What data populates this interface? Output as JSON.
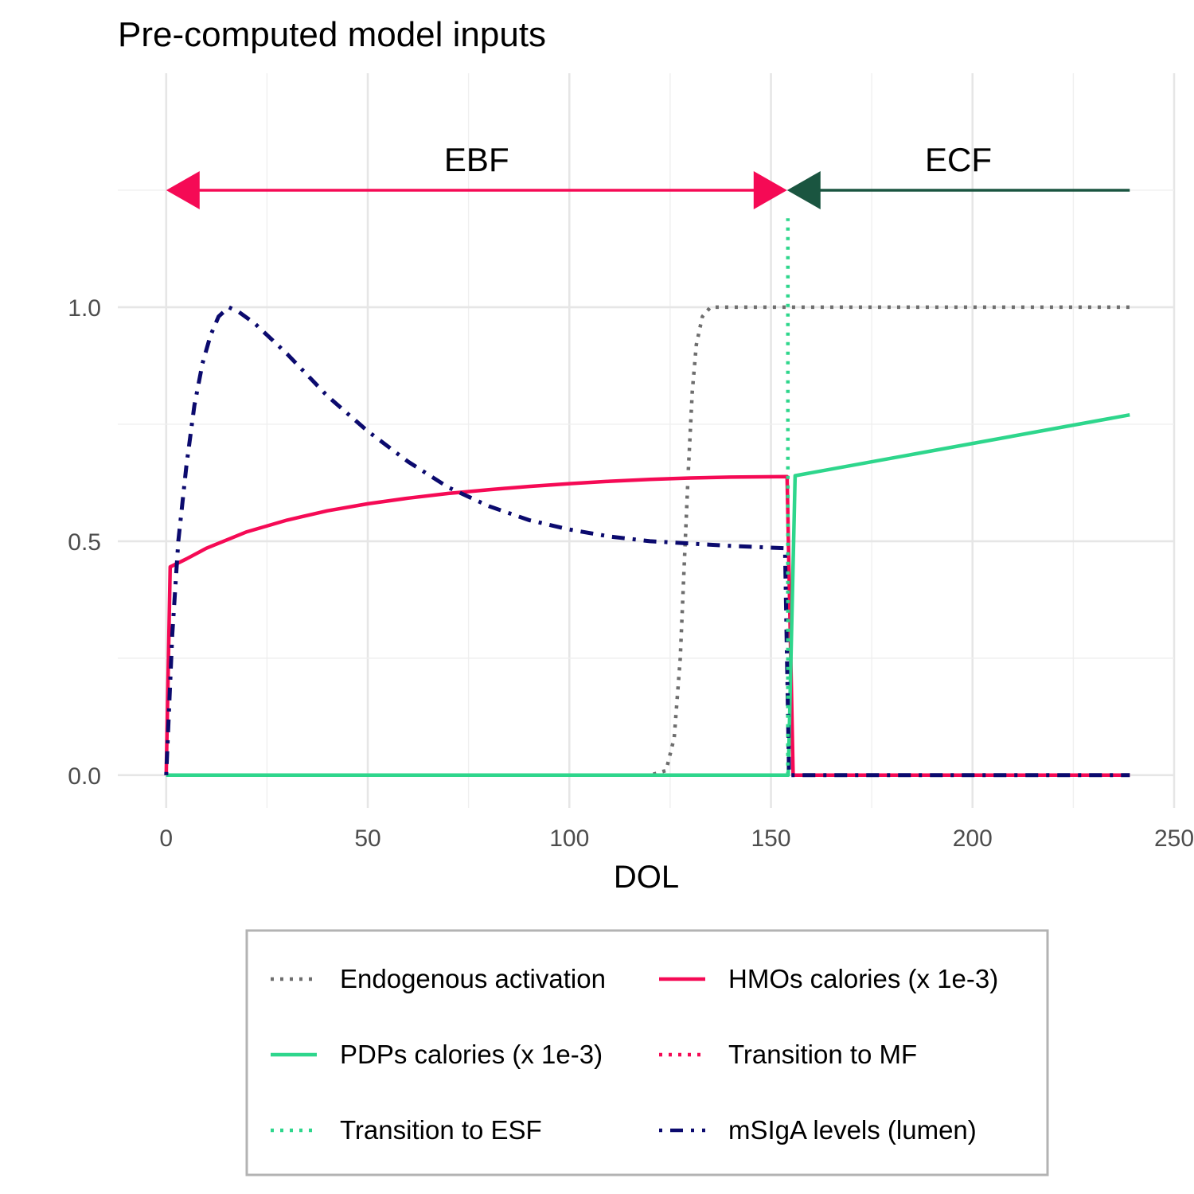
{
  "chart_data": {
    "type": "line",
    "title": "Pre-computed model inputs",
    "xlabel": "DOL",
    "ylabel": "",
    "xlim": [
      -12,
      250
    ],
    "ylim": [
      -0.07,
      1.5
    ],
    "x_ticks": [
      "0",
      "50",
      "100",
      "150",
      "200",
      "250"
    ],
    "x_tick_values": [
      0,
      50,
      100,
      150,
      200,
      250
    ],
    "y_ticks": [
      "0.0",
      "0.5",
      "1.0"
    ],
    "y_tick_values": [
      0.0,
      0.5,
      1.0
    ],
    "grid": true,
    "legend_position": "bottom",
    "annotations": [
      {
        "label": "EBF",
        "x_from": 0,
        "x_to": 154,
        "y": 1.25,
        "label_x": 77,
        "color": "#F50A55"
      },
      {
        "label": "ECF",
        "x_from": 154,
        "x_to": 239,
        "y": 1.25,
        "label_x": 196.5,
        "color": "#1A5540"
      }
    ],
    "series": [
      {
        "name": "Endogenous activation",
        "color": "#6E6E6E",
        "style": "dotted",
        "points": [
          [
            0,
            0
          ],
          [
            120,
            0
          ],
          [
            124,
            0.01
          ],
          [
            126,
            0.08
          ],
          [
            127.5,
            0.25
          ],
          [
            128.5,
            0.45
          ],
          [
            129.5,
            0.65
          ],
          [
            130.5,
            0.82
          ],
          [
            131.5,
            0.92
          ],
          [
            133,
            0.98
          ],
          [
            135,
            1.0
          ],
          [
            239,
            1.0
          ]
        ]
      },
      {
        "name": "HMOs calories (x 1e-3)",
        "color": "#F50A55",
        "style": "solid",
        "points": [
          [
            0,
            0
          ],
          [
            1,
            0.445
          ],
          [
            5,
            0.462
          ],
          [
            10,
            0.485
          ],
          [
            20,
            0.52
          ],
          [
            30,
            0.545
          ],
          [
            40,
            0.565
          ],
          [
            50,
            0.58
          ],
          [
            60,
            0.592
          ],
          [
            70,
            0.602
          ],
          [
            80,
            0.61
          ],
          [
            90,
            0.617
          ],
          [
            100,
            0.623
          ],
          [
            110,
            0.628
          ],
          [
            120,
            0.632
          ],
          [
            130,
            0.635
          ],
          [
            140,
            0.637
          ],
          [
            154,
            0.638
          ],
          [
            155.5,
            0
          ],
          [
            239,
            0
          ]
        ]
      },
      {
        "name": "PDPs calories (x 1e-3)",
        "color": "#2ED68C",
        "style": "solid",
        "points": [
          [
            0,
            0
          ],
          [
            154.3,
            0
          ],
          [
            156,
            0.64
          ],
          [
            239,
            0.77
          ]
        ]
      },
      {
        "name": "Transition to MF",
        "color": "#F50A55",
        "style": "dotted",
        "points": [
          [
            156,
            0
          ],
          [
            239,
            0
          ]
        ]
      },
      {
        "name": "Transition to ESF",
        "color": "#2ED68C",
        "style": "dotted",
        "points": [
          [
            154.2,
            0
          ],
          [
            154.2,
            1.19
          ]
        ]
      },
      {
        "name": "mSIgA levels (lumen)",
        "color": "#0B0A6E",
        "style": "dotdash",
        "points": [
          [
            0,
            0
          ],
          [
            1.5,
            0.3
          ],
          [
            3,
            0.5
          ],
          [
            5,
            0.66
          ],
          [
            7,
            0.79
          ],
          [
            9,
            0.88
          ],
          [
            11,
            0.94
          ],
          [
            13,
            0.98
          ],
          [
            15.5,
            1.0
          ],
          [
            18,
            0.99
          ],
          [
            22,
            0.965
          ],
          [
            30,
            0.9
          ],
          [
            40,
            0.81
          ],
          [
            50,
            0.735
          ],
          [
            60,
            0.67
          ],
          [
            70,
            0.615
          ],
          [
            80,
            0.575
          ],
          [
            90,
            0.545
          ],
          [
            100,
            0.525
          ],
          [
            110,
            0.51
          ],
          [
            120,
            0.5
          ],
          [
            130,
            0.495
          ],
          [
            140,
            0.49
          ],
          [
            153.5,
            0.485
          ],
          [
            154.5,
            0
          ],
          [
            239,
            0
          ]
        ]
      }
    ]
  }
}
